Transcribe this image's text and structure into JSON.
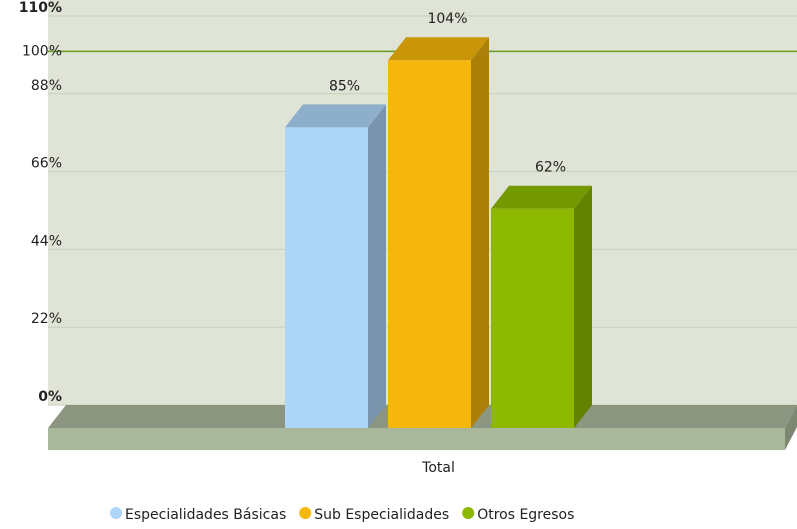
{
  "chart_data": {
    "type": "bar",
    "categories": [
      "Total"
    ],
    "series": [
      {
        "name": "Especialidades Básicas",
        "color": "#acd5f7",
        "values": [
          85
        ],
        "value_labels": [
          "85%"
        ]
      },
      {
        "name": "Sub Especialidades",
        "color": "#f5b70c",
        "values": [
          104
        ],
        "value_labels": [
          "104%"
        ]
      },
      {
        "name": "Otros Egresos",
        "color": "#8cb900",
        "values": [
          62
        ],
        "value_labels": [
          "62%"
        ]
      }
    ],
    "ylim": [
      0,
      110
    ],
    "yticks": [
      {
        "value": 0,
        "label": "0%"
      },
      {
        "value": 22,
        "label": "22%"
      },
      {
        "value": 44,
        "label": "44%"
      },
      {
        "value": 66,
        "label": "66%"
      },
      {
        "value": 88,
        "label": "88%"
      },
      {
        "value": 110,
        "label": "110%"
      }
    ],
    "reference_line": {
      "value": 100,
      "label": "100%",
      "color": "#6a9a1e"
    },
    "grid": true
  }
}
